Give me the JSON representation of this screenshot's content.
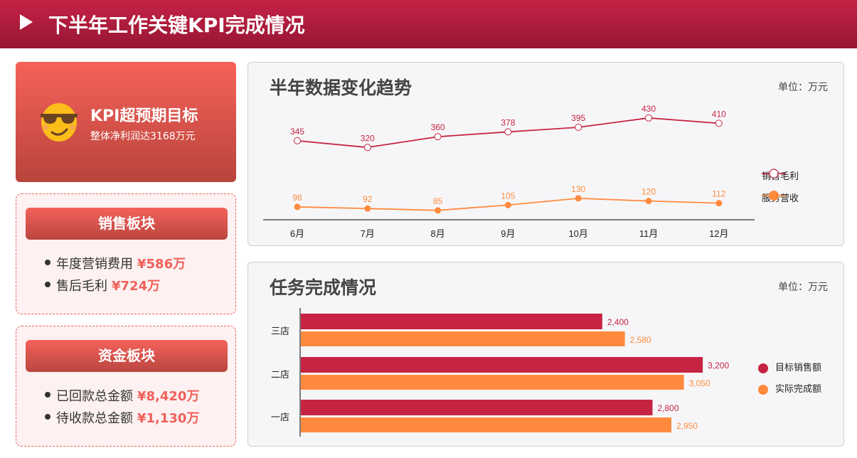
{
  "header": {
    "title": "下半年工作关键KPI完成情况"
  },
  "kpi_card": {
    "title": "KPI超预期目标",
    "subtitle": "整体净利润达3168万元",
    "icon": "sunglasses-emoji-icon"
  },
  "sales_section": {
    "label": "销售板块",
    "items": [
      {
        "label": "年度营销费用",
        "value": "¥586万"
      },
      {
        "label": "售后毛利",
        "value": "¥724万"
      }
    ]
  },
  "funds_section": {
    "label": "资金板块",
    "items": [
      {
        "label": "已回款总金额",
        "value": "¥8,420万"
      },
      {
        "label": "待收款总金额",
        "value": "¥1,130万"
      }
    ]
  },
  "colors": {
    "primary": "#c62442",
    "secondary": "#ff8a3d",
    "accent": "#f0605a"
  },
  "chart_data": [
    {
      "type": "line",
      "title": "半年数据变化趋势",
      "unit_label": "单位：万元",
      "categories": [
        "6月",
        "7月",
        "8月",
        "9月",
        "10月",
        "11月",
        "12月"
      ],
      "series": [
        {
          "name": "销售毛利",
          "values": [
            345,
            320,
            360,
            378,
            395,
            430,
            410
          ],
          "color": "#c62442",
          "marker": "hollow-circle"
        },
        {
          "name": "服务营收",
          "values": [
            98,
            92,
            85,
            105,
            130,
            120,
            112
          ],
          "color": "#ff8a3d",
          "marker": "filled-circle"
        }
      ],
      "ylim": [
        50,
        480
      ],
      "grid": false,
      "legend": "right"
    },
    {
      "type": "bar",
      "orientation": "horizontal",
      "title": "任务完成情况",
      "unit_label": "单位：万元",
      "categories": [
        "三店",
        "二店",
        "一店"
      ],
      "series": [
        {
          "name": "目标销售额",
          "values": [
            2400,
            3200,
            2800
          ],
          "labels": [
            "2,400",
            "3,200",
            "2,800"
          ],
          "color": "#c62442"
        },
        {
          "name": "实际完成额",
          "values": [
            2580,
            3050,
            2950
          ],
          "labels": [
            "2,580",
            "3,050",
            "2,950"
          ],
          "color": "#ff8a3d"
        }
      ],
      "xlim": [
        0,
        3600
      ],
      "grid": false,
      "legend": "right"
    }
  ]
}
